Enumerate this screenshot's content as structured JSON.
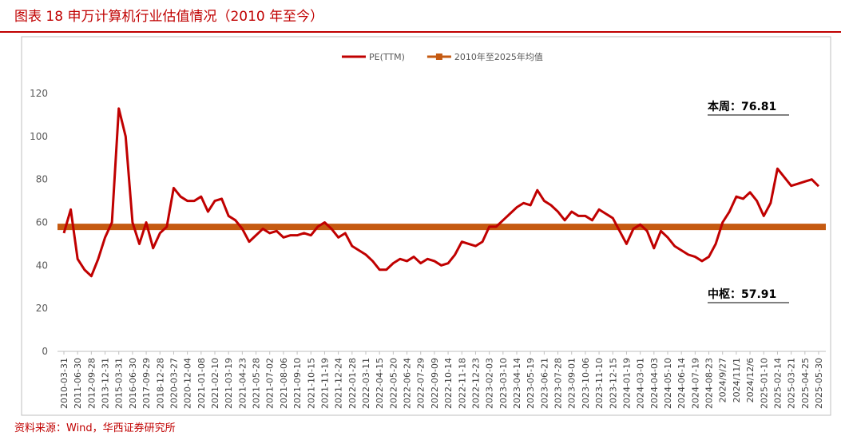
{
  "chart_data": {
    "type": "line",
    "title": "图表 18 申万计算机行业估值情况（2010 年至今）",
    "source": "资料来源：Wind，华西证券研究所",
    "annotations": [
      "本周：76.81",
      "中枢：57.91"
    ],
    "categories": [
      "2010-03-31",
      null,
      "2011-06-30",
      null,
      "2012-09-28",
      null,
      "2013-12-31",
      null,
      "2015-03-31",
      null,
      "2016-06-30",
      null,
      "2017-09-29",
      null,
      "2018-12-28",
      null,
      "2020-03-27",
      null,
      "2020-12-04",
      null,
      "2021-01-08",
      null,
      "2021-02-10",
      null,
      "2021-03-19",
      null,
      "2021-04-23",
      null,
      "2021-05-28",
      null,
      "2021-07-02",
      null,
      "2021-08-06",
      null,
      "2021-09-10",
      null,
      "2021-10-15",
      null,
      "2021-11-19",
      null,
      "2021-12-24",
      null,
      "2022-01-28",
      null,
      "2022-03-11",
      null,
      "2022-04-15",
      null,
      "2022-05-20",
      null,
      "2022-06-24",
      null,
      "2022-07-29",
      null,
      "2022-09-09",
      null,
      "2022-10-14",
      null,
      "2022-11-18",
      null,
      "2022-12-23",
      null,
      "2023-02-03",
      null,
      "2023-03-10",
      null,
      "2023-04-14",
      null,
      "2023-05-19",
      null,
      "2023-06-21",
      null,
      "2023-07-28",
      null,
      "2023-09-01",
      null,
      "2023-10-06",
      null,
      "2023-11-10",
      null,
      "2023-12-15",
      null,
      "2024-01-19",
      null,
      "2024-03-01",
      null,
      "2024-04-03",
      null,
      "2024-05-10",
      null,
      "2024-06-14",
      null,
      "2024-07-19",
      null,
      "2024-08-23",
      null,
      "2024/9/27",
      null,
      "2024/11/1",
      null,
      "2024/12/6",
      null,
      "2025-01-10",
      null,
      "2025-02-14",
      null,
      "2025-03-21",
      null,
      "2025-04-25",
      null,
      "2025-05-30"
    ],
    "series": [
      {
        "name": "PE(TTM)",
        "color": "#c00000",
        "values": [
          55,
          66,
          43,
          38,
          35,
          43,
          53,
          60,
          113,
          100,
          60,
          50,
          60,
          48,
          55,
          58,
          76,
          72,
          70,
          70,
          72,
          65,
          70,
          71,
          63,
          61,
          57,
          51,
          54,
          57,
          55,
          56,
          53,
          54,
          54,
          55,
          54,
          58,
          60,
          57,
          53,
          55,
          49,
          47,
          45,
          42,
          38,
          38,
          41,
          43,
          42,
          44,
          41,
          43,
          42,
          40,
          41,
          45,
          51,
          50,
          49,
          51,
          58,
          58,
          61,
          64,
          67,
          69,
          68,
          75,
          70,
          68,
          65,
          61,
          65,
          63,
          63,
          61,
          66,
          64,
          62,
          56,
          50,
          57,
          59,
          56,
          48,
          56,
          53,
          49,
          47,
          45,
          44,
          42,
          44,
          50,
          60,
          65,
          72,
          71,
          74,
          70,
          63,
          69,
          85,
          81,
          77,
          78,
          79,
          80,
          76.81
        ]
      }
    ],
    "reference_lines": [
      {
        "name": "2010年至2025年均值",
        "value": 57.91,
        "color": "#c55a11"
      }
    ],
    "ylim": [
      0,
      120
    ],
    "yticks": [
      0,
      20,
      40,
      60,
      80,
      100,
      120
    ],
    "grid": false
  }
}
